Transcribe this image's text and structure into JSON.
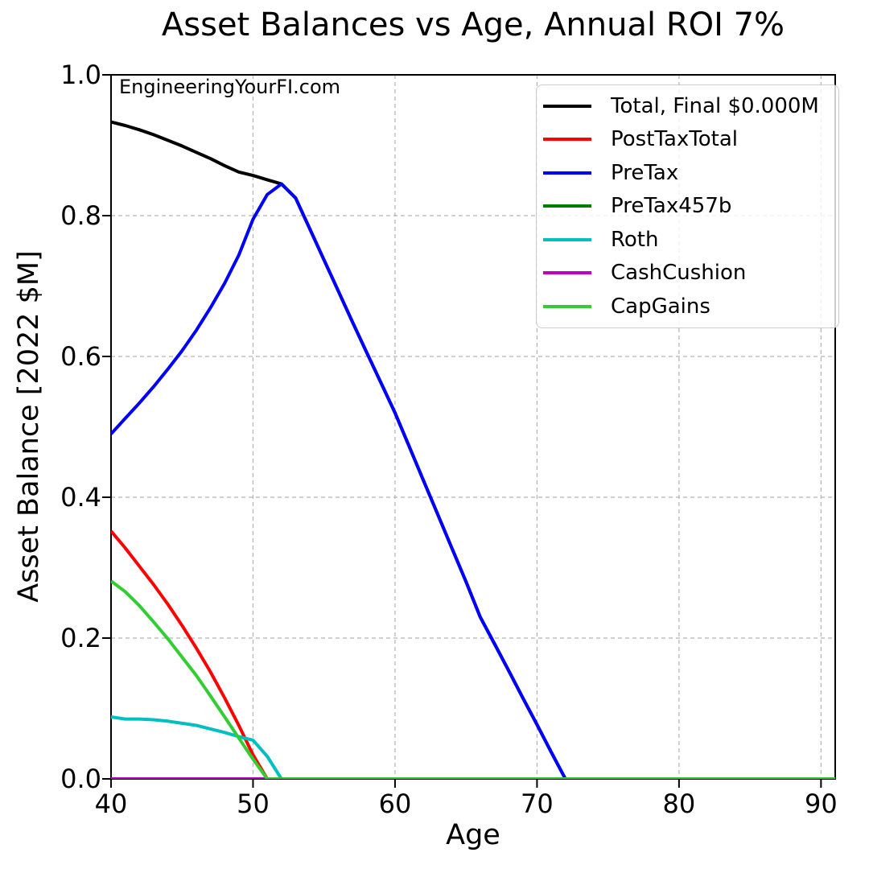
{
  "title": "Asset Balances vs Age, Annual ROI 7%",
  "watermark": "EngineeringYourFI.com",
  "chart_data": {
    "type": "line",
    "title": "Asset Balances vs Age, Annual ROI 7%",
    "xlabel": "Age",
    "ylabel": "Asset Balance [2022 $M]",
    "xlim": [
      40,
      91
    ],
    "ylim": [
      0,
      1.0
    ],
    "xtick_labels": [
      "40",
      "50",
      "60",
      "70",
      "80",
      "90"
    ],
    "ytick_labels": [
      "0.0",
      "0.2",
      "0.4",
      "0.6",
      "0.8",
      "1.0"
    ],
    "grid": true,
    "grid_style": "dashed",
    "legend_position": "upper right",
    "x": [
      40,
      41,
      42,
      43,
      44,
      45,
      46,
      47,
      48,
      49,
      50,
      51,
      52,
      53,
      54,
      55,
      56,
      57,
      58,
      59,
      60,
      61,
      62,
      63,
      64,
      65,
      66,
      67,
      68,
      69,
      70,
      71,
      72,
      73,
      74,
      75,
      76,
      77,
      78,
      79,
      80,
      81,
      82,
      83,
      84,
      85,
      86,
      87,
      88,
      89,
      90,
      91
    ],
    "series": [
      {
        "name": "Total, Final $0.000M",
        "color": "#000000",
        "values": [
          0.933,
          0.928,
          0.922,
          0.915,
          0.907,
          0.899,
          0.89,
          0.881,
          0.871,
          0.862,
          0.857,
          0.851,
          0.845,
          0.825,
          0.781,
          0.737,
          0.693,
          0.649,
          0.606,
          0.563,
          0.52,
          0.472,
          0.424,
          0.376,
          0.328,
          0.28,
          0.23,
          0.192,
          0.154,
          0.115,
          0.077,
          0.038,
          0,
          0,
          0,
          0,
          0,
          0,
          0,
          0,
          0,
          0,
          0,
          0,
          0,
          0,
          0,
          0,
          0,
          0,
          0,
          0
        ]
      },
      {
        "name": "PostTaxTotal",
        "color": "#ff0000",
        "values": [
          0.352,
          0.328,
          0.302,
          0.276,
          0.248,
          0.218,
          0.186,
          0.152,
          0.115,
          0.076,
          0.034,
          0,
          0,
          0,
          0,
          0,
          0,
          0,
          0,
          0,
          0,
          0,
          0,
          0,
          0,
          0,
          0,
          0,
          0,
          0,
          0,
          0,
          0,
          0,
          0,
          0,
          0,
          0,
          0,
          0,
          0,
          0,
          0,
          0,
          0,
          0,
          0,
          0,
          0,
          0,
          0,
          0
        ]
      },
      {
        "name": "PreTax",
        "color": "#0000ff",
        "values": [
          0.49,
          0.512,
          0.534,
          0.557,
          0.582,
          0.608,
          0.637,
          0.669,
          0.704,
          0.744,
          0.795,
          0.83,
          0.845,
          0.825,
          0.781,
          0.737,
          0.693,
          0.649,
          0.606,
          0.563,
          0.52,
          0.472,
          0.424,
          0.376,
          0.328,
          0.28,
          0.23,
          0.192,
          0.154,
          0.115,
          0.077,
          0.038,
          0,
          0,
          0,
          0,
          0,
          0,
          0,
          0,
          0,
          0,
          0,
          0,
          0,
          0,
          0,
          0,
          0,
          0,
          0,
          0
        ]
      },
      {
        "name": "PreTax457b",
        "color": "#008000",
        "values": [
          0,
          0,
          0,
          0,
          0,
          0,
          0,
          0,
          0,
          0,
          0,
          0,
          0,
          0,
          0,
          0,
          0,
          0,
          0,
          0,
          0,
          0,
          0,
          0,
          0,
          0,
          0,
          0,
          0,
          0,
          0,
          0,
          0,
          0,
          0,
          0,
          0,
          0,
          0,
          0,
          0,
          0,
          0,
          0,
          0,
          0,
          0,
          0,
          0,
          0,
          0,
          0
        ]
      },
      {
        "name": "Roth",
        "color": "#00bfbf",
        "values": [
          0.088,
          0.085,
          0.085,
          0.084,
          0.082,
          0.079,
          0.076,
          0.071,
          0.066,
          0.06,
          0.055,
          0.032,
          0,
          0,
          0,
          0,
          0,
          0,
          0,
          0,
          0,
          0,
          0,
          0,
          0,
          0,
          0,
          0,
          0,
          0,
          0,
          0,
          0,
          0,
          0,
          0,
          0,
          0,
          0,
          0,
          0,
          0,
          0,
          0,
          0,
          0,
          0,
          0,
          0,
          0,
          0,
          0
        ]
      },
      {
        "name": "CashCushion",
        "color": "#bf00bf",
        "values": [
          0,
          0,
          0,
          0,
          0,
          0,
          0,
          0,
          0,
          0,
          0,
          0,
          0,
          0,
          0,
          0,
          0,
          0,
          0,
          0,
          0,
          0,
          0,
          0,
          0,
          0,
          0,
          0,
          0,
          0,
          0,
          0,
          0,
          0,
          0,
          0,
          0,
          0,
          0,
          0,
          0,
          0,
          0,
          0,
          0,
          0,
          0,
          0,
          0,
          0,
          0,
          0
        ]
      },
      {
        "name": "CapGains",
        "color": "#32cd32",
        "values": [
          0.281,
          0.266,
          0.246,
          0.223,
          0.199,
          0.173,
          0.147,
          0.118,
          0.088,
          0.058,
          0.028,
          0,
          0,
          0,
          0,
          0,
          0,
          0,
          0,
          0,
          0,
          0,
          0,
          0,
          0,
          0,
          0,
          0,
          0,
          0,
          0,
          0,
          0,
          0,
          0,
          0,
          0,
          0,
          0,
          0,
          0,
          0,
          0,
          0,
          0,
          0,
          0,
          0,
          0,
          0,
          0,
          0
        ]
      }
    ]
  }
}
